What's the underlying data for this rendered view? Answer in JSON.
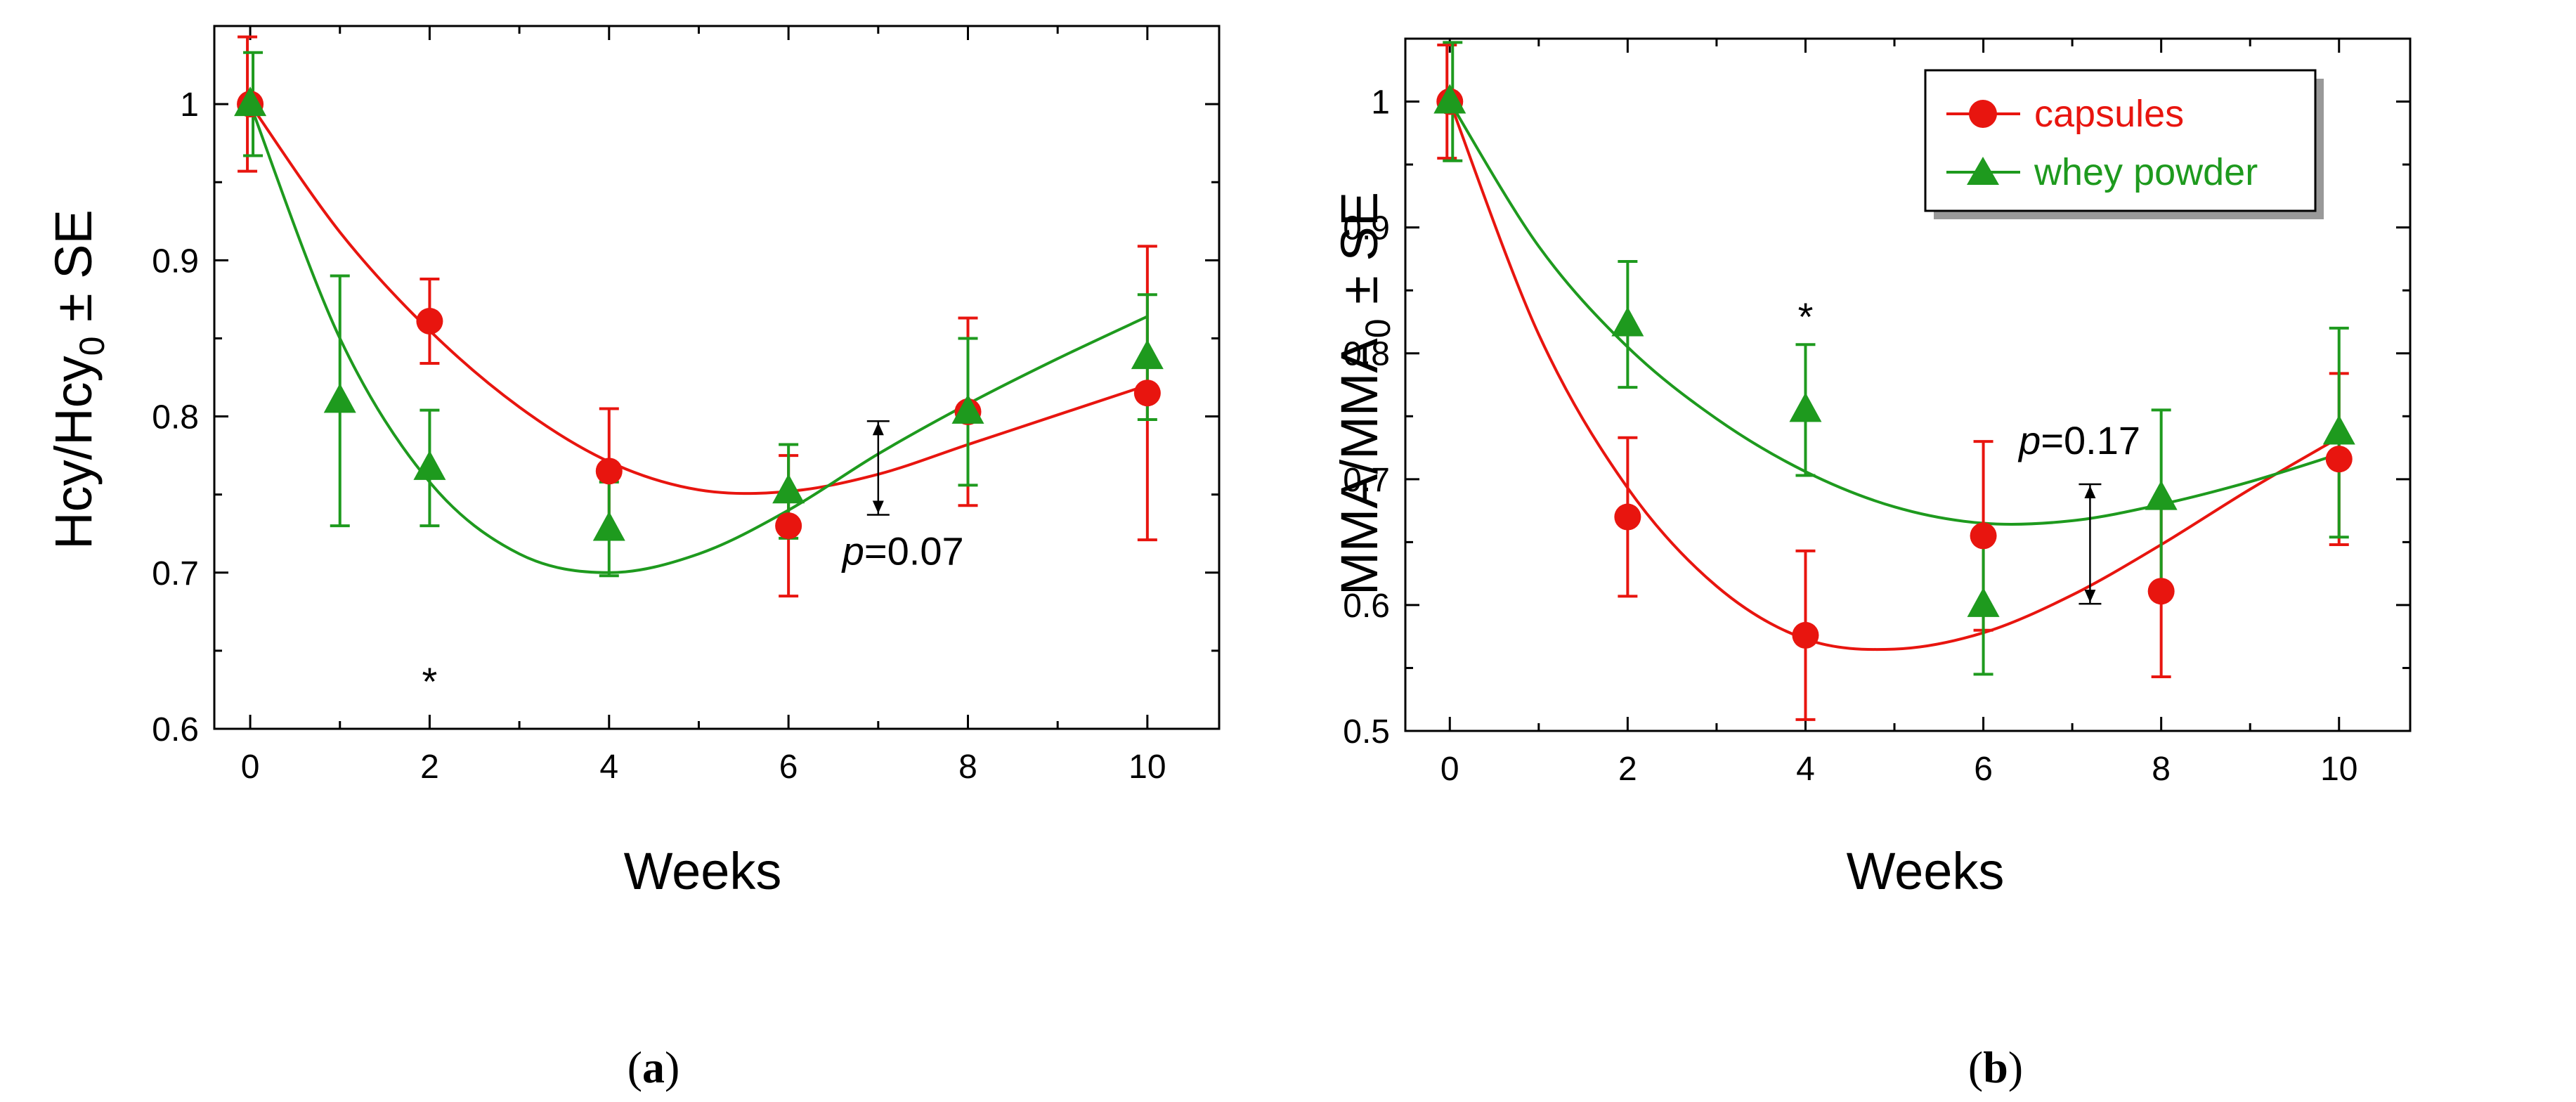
{
  "chart_data": [
    {
      "type": "scatter",
      "panel_label": "a",
      "xlabel": "Weeks",
      "ylabel_main": "Hcy/Hcy",
      "ylabel_sub": "0",
      "ylabel_tail": " ± SE",
      "xlim": [
        -0.4,
        10.8
      ],
      "ylim": [
        0.6,
        1.05
      ],
      "xticks": [
        0,
        2,
        4,
        6,
        8,
        10
      ],
      "xtick_labels": [
        "0",
        "2",
        "4",
        "6",
        "8",
        "10"
      ],
      "yticks": [
        0.6,
        0.7,
        0.8,
        0.9,
        1.0
      ],
      "ytick_labels": [
        "0.6",
        "0.7",
        "0.8",
        "0.9",
        "1"
      ],
      "series": [
        {
          "name": "capsules",
          "color": "#e8150f",
          "marker": "circle",
          "x": [
            0,
            2,
            4,
            6,
            8,
            10
          ],
          "y": [
            1.0,
            0.861,
            0.765,
            0.73,
            0.803,
            0.815
          ],
          "err": [
            0.043,
            0.027,
            0.04,
            0.045,
            0.06,
            0.094
          ],
          "fit": [
            [
              0,
              1.0
            ],
            [
              1,
              0.918
            ],
            [
              2,
              0.855
            ],
            [
              3,
              0.806
            ],
            [
              4,
              0.771
            ],
            [
              5,
              0.753
            ],
            [
              6,
              0.752
            ],
            [
              7,
              0.763
            ],
            [
              8,
              0.782
            ],
            [
              9,
              0.801
            ],
            [
              10,
              0.82
            ]
          ]
        },
        {
          "name": "whey powder",
          "color": "#1e9a1e",
          "marker": "triangle",
          "x": [
            0,
            1,
            2,
            4,
            6,
            8,
            10
          ],
          "y": [
            1.0,
            0.81,
            0.767,
            0.728,
            0.752,
            0.803,
            0.838
          ],
          "err": [
            0.033,
            0.08,
            0.037,
            0.03,
            0.03,
            0.047,
            0.04
          ],
          "fit": [
            [
              0,
              1.0
            ],
            [
              1,
              0.85
            ],
            [
              2,
              0.758
            ],
            [
              3,
              0.712
            ],
            [
              4,
              0.7
            ],
            [
              5,
              0.712
            ],
            [
              6,
              0.74
            ],
            [
              7,
              0.776
            ],
            [
              8,
              0.808
            ],
            [
              9,
              0.837
            ],
            [
              10,
              0.864
            ]
          ]
        }
      ],
      "bracket": {
        "x": 7.0,
        "y1": 0.797,
        "y2": 0.737
      },
      "p_label": "p",
      "p_value": "=0.07",
      "p_pos": {
        "x": 6.6,
        "y": 0.705
      },
      "star": "*",
      "star_pos": {
        "x": 2.0,
        "y": 0.635
      }
    },
    {
      "type": "scatter",
      "panel_label": "b",
      "xlabel": "Weeks",
      "ylabel_main": "MMA/MMA",
      "ylabel_sub": "0",
      "ylabel_tail": " ± SE",
      "xlim": [
        -0.5,
        10.8
      ],
      "ylim": [
        0.5,
        1.05
      ],
      "xticks": [
        0,
        2,
        4,
        6,
        8,
        10
      ],
      "xtick_labels": [
        "0",
        "2",
        "4",
        "6",
        "8",
        "10"
      ],
      "yticks": [
        0.5,
        0.6,
        0.7,
        0.8,
        0.9,
        1.0
      ],
      "ytick_labels": [
        "0.5",
        "0.6",
        "0.7",
        "0.8",
        "0.9",
        "1"
      ],
      "series": [
        {
          "name": "capsules",
          "color": "#e8150f",
          "marker": "circle",
          "x": [
            0,
            2,
            4,
            6,
            8,
            10
          ],
          "y": [
            1.0,
            0.67,
            0.576,
            0.655,
            0.611,
            0.716
          ],
          "err": [
            0.045,
            0.063,
            0.067,
            0.075,
            0.068,
            0.068
          ],
          "fit": [
            [
              0,
              1.0
            ],
            [
              1,
              0.815
            ],
            [
              2,
              0.693
            ],
            [
              3,
              0.615
            ],
            [
              4,
              0.573
            ],
            [
              5,
              0.565
            ],
            [
              6,
              0.578
            ],
            [
              7,
              0.608
            ],
            [
              8,
              0.648
            ],
            [
              9,
              0.692
            ],
            [
              10,
              0.733
            ]
          ]
        },
        {
          "name": "whey powder",
          "color": "#1e9a1e",
          "marker": "triangle",
          "x": [
            0,
            2,
            4,
            6,
            8,
            10
          ],
          "y": [
            1.0,
            0.823,
            0.755,
            0.6,
            0.685,
            0.737
          ],
          "err": [
            0.047,
            0.05,
            0.052,
            0.055,
            0.07,
            0.083
          ],
          "fit": [
            [
              0,
              1.0
            ],
            [
              1,
              0.885
            ],
            [
              2,
              0.805
            ],
            [
              3,
              0.748
            ],
            [
              4,
              0.706
            ],
            [
              5,
              0.678
            ],
            [
              6,
              0.665
            ],
            [
              7,
              0.667
            ],
            [
              8,
              0.68
            ],
            [
              9,
              0.698
            ],
            [
              10,
              0.72
            ]
          ]
        }
      ],
      "bracket": {
        "x": 7.2,
        "y1": 0.696,
        "y2": 0.601
      },
      "p_label": "p",
      "p_value": "=0.17",
      "p_pos": {
        "x": 6.4,
        "y": 0.72
      },
      "star": "*",
      "star_pos": {
        "x": 4.0,
        "y": 0.835
      },
      "legend": {
        "position": "top-right",
        "items": [
          {
            "label": "capsules",
            "color": "#e8150f",
            "marker": "circle"
          },
          {
            "label": "whey powder",
            "color": "#1e9a1e",
            "marker": "triangle"
          }
        ]
      }
    }
  ]
}
